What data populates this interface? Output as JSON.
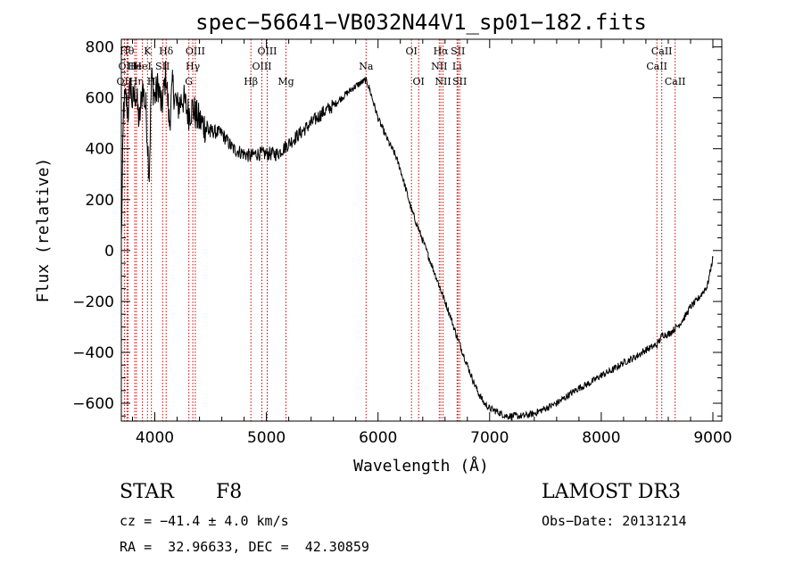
{
  "chart_data": {
    "type": "line",
    "title": "spec−56641−VB032N44V1_sp01−182.fits",
    "xlabel": "Wavelength (Å)",
    "ylabel": "Flux (relative)",
    "xlim": [
      3700,
      9080
    ],
    "ylim": [
      -670,
      830
    ],
    "xticks": [
      4000,
      5000,
      6000,
      7000,
      8000,
      9000
    ],
    "yticks": [
      -600,
      -400,
      -200,
      0,
      200,
      400,
      600,
      800
    ],
    "ytick_labels": [
      "−600",
      "−400",
      "−200",
      "0",
      "200",
      "400",
      "600",
      "800"
    ],
    "series": [
      {
        "name": "spectrum",
        "x": [
          3700,
          3720,
          3740,
          3760,
          3780,
          3800,
          3830,
          3860,
          3890,
          3920,
          3950,
          3970,
          4000,
          4030,
          4060,
          4080,
          4100,
          4130,
          4160,
          4200,
          4250,
          4300,
          4340,
          4380,
          4420,
          4500,
          4600,
          4700,
          4800,
          4860,
          4900,
          5000,
          5100,
          5200,
          5300,
          5400,
          5500,
          5600,
          5700,
          5780,
          5850,
          5890,
          5920,
          5960,
          6000,
          6050,
          6100,
          6150,
          6200,
          6250,
          6300,
          6350,
          6400,
          6450,
          6500,
          6550,
          6600,
          6650,
          6700,
          6750,
          6800,
          6850,
          6900,
          6950,
          7000,
          7050,
          7100,
          7150,
          7200,
          7300,
          7400,
          7500,
          7600,
          7700,
          7800,
          7900,
          8000,
          8100,
          8200,
          8300,
          8400,
          8500,
          8550,
          8600,
          8650,
          8700,
          8750,
          8800,
          8850,
          8900,
          8950,
          9000
        ],
        "y": [
          30,
          560,
          600,
          540,
          650,
          580,
          620,
          500,
          640,
          560,
          300,
          680,
          600,
          650,
          560,
          620,
          700,
          500,
          650,
          560,
          600,
          540,
          560,
          520,
          500,
          470,
          460,
          400,
          380,
          370,
          380,
          380,
          380,
          420,
          460,
          500,
          540,
          570,
          610,
          640,
          660,
          670,
          640,
          580,
          520,
          470,
          420,
          380,
          320,
          240,
          160,
          100,
          40,
          -20,
          -80,
          -140,
          -200,
          -260,
          -330,
          -390,
          -450,
          -510,
          -560,
          -600,
          -620,
          -630,
          -640,
          -650,
          -650,
          -650,
          -640,
          -620,
          -600,
          -570,
          -540,
          -520,
          -490,
          -470,
          -440,
          -420,
          -390,
          -370,
          -330,
          -330,
          -310,
          -290,
          -260,
          -220,
          -200,
          -170,
          -140,
          -30
        ]
      }
    ],
    "line_markers": [
      {
        "label": "OII",
        "x": 3727,
        "row": 3
      },
      {
        "label": "Hθ",
        "x": 3750,
        "row": 1
      },
      {
        "label": "OIII",
        "x": 3760,
        "row": 2
      },
      {
        "label": "He",
        "x": 3820,
        "row": 2
      },
      {
        "label": "Hη",
        "x": 3835,
        "row": 3
      },
      {
        "label": "HeI",
        "x": 3889,
        "row": 2
      },
      {
        "label": "K",
        "x": 3934,
        "row": 1
      },
      {
        "label": "H",
        "x": 3969,
        "row": 3
      },
      {
        "label": "SII",
        "x": 4070,
        "row": 2
      },
      {
        "label": "Hδ",
        "x": 4101,
        "row": 1
      },
      {
        "label": "G",
        "x": 4305,
        "row": 3
      },
      {
        "label": "Hγ",
        "x": 4340,
        "row": 2
      },
      {
        "label": "OIII",
        "x": 4363,
        "row": 1
      },
      {
        "label": "Hβ",
        "x": 4861,
        "row": 3
      },
      {
        "label": "OIII",
        "x": 4959,
        "row": 2
      },
      {
        "label": "OIII",
        "x": 5007,
        "row": 1
      },
      {
        "label": "Mg",
        "x": 5175,
        "row": 3
      },
      {
        "label": "Na",
        "x": 5893,
        "row": 2
      },
      {
        "label": "OI",
        "x": 6300,
        "row": 1
      },
      {
        "label": "OI",
        "x": 6364,
        "row": 3
      },
      {
        "label": "NII",
        "x": 6548,
        "row": 2
      },
      {
        "label": "Hα",
        "x": 6563,
        "row": 1
      },
      {
        "label": "NII",
        "x": 6583,
        "row": 3
      },
      {
        "label": "Li",
        "x": 6708,
        "row": 2
      },
      {
        "label": "SII",
        "x": 6716,
        "row": 1
      },
      {
        "label": "SII",
        "x": 6731,
        "row": 3
      },
      {
        "label": "CaII",
        "x": 8498,
        "row": 2
      },
      {
        "label": "CaII",
        "x": 8542,
        "row": 1
      },
      {
        "label": "CaII",
        "x": 8662,
        "row": 3
      }
    ],
    "marker_color": "#cc0000"
  },
  "info": {
    "class": "STAR",
    "subclass": "F8",
    "survey": "LAMOST DR3",
    "cz": "cz = −41.4 ± 4.0 km/s",
    "obs_date": "Obs−Date: 20131214",
    "radec": "RA =  32.96633, DEC =  42.30859"
  }
}
